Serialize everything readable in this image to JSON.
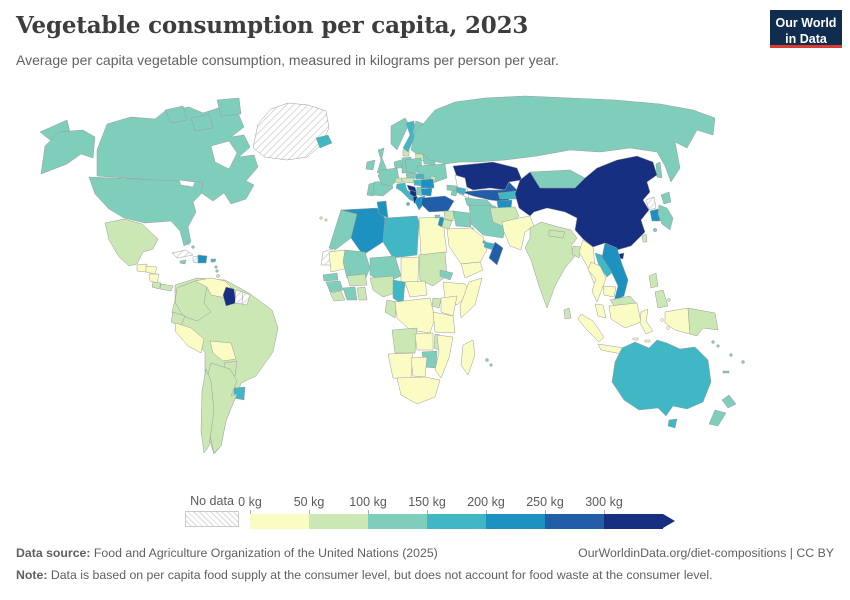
{
  "header": {
    "title": "Vegetable consumption per capita, 2023",
    "subtitle": "Average per capita vegetable consumption, measured in kilograms per person per year.",
    "logo_line1": "Our World",
    "logo_line2": "in Data",
    "logo_bg_color": "#102d50",
    "logo_accent_color": "#d93d32"
  },
  "footer": {
    "source_label": "Data source:",
    "source_text": " Food and Agriculture Organization of the United Nations (2025)",
    "link_text": "OurWorldinData.org/diet-compositions | CC BY",
    "note_label": "Note:",
    "note_text": " Data is based on per capita food supply at the consumer level, but does not account for food waste at the consumer level."
  },
  "chart_data": {
    "type": "choropleth_map",
    "title": "Vegetable consumption per capita, 2023",
    "unit": "kilograms per person per year",
    "year": 2023,
    "legend": {
      "no_data_label": "No data",
      "no_data_pattern": "diagonal-hatch",
      "tick_labels": [
        "0 kg",
        "50 kg",
        "100 kg",
        "150 kg",
        "200 kg",
        "250 kg",
        "300 kg"
      ],
      "colors": [
        "#fbfcc4",
        "#cbe7b4",
        "#7fcdbb",
        "#41b6c4",
        "#1d91c0",
        "#225ea8",
        "#172f80"
      ],
      "bin_ranges": [
        "0–50 kg",
        "50–100 kg",
        "100–150 kg",
        "150–200 kg",
        "200–250 kg",
        "250–300 kg",
        "300+ kg"
      ],
      "arrow_at_end": true
    },
    "countries": {
      "greenland": "no_data",
      "western-sahara": "no_data",
      "cuba": "no_data",
      "haiti": "no_data",
      "suriname": "no_data",
      "french-guiana": "no_data",
      "north-korea": "no_data",
      "guatemala": 0,
      "honduras": 0,
      "nicaragua": 0,
      "venezuela": 0,
      "peru": 0,
      "bolivia": 0,
      "egypt": 0,
      "mauritania": 0,
      "chad": 0,
      "ethiopia": 0,
      "somalia": 0,
      "kenya": 0,
      "tanzania": 0,
      "democratic-republic-of-congo": 0,
      "zambia": 0,
      "mozambique": 0,
      "madagascar": 0,
      "namibia": 0,
      "botswana": 0,
      "south-africa": 0,
      "saudi-arabia": 0,
      "yemen": 0,
      "pakistan": 0,
      "myanmar": 0,
      "thailand": 0,
      "cambodia": 0,
      "malaysia": 0,
      "indonesia": 0,
      "central-african-republic": 0,
      "mexico": 1,
      "costa-rica": 1,
      "panama": 1,
      "colombia": 1,
      "ecuador": 1,
      "brazil": 1,
      "paraguay": 1,
      "argentina": 1,
      "chile": 1,
      "trinidad-and-tobago": 1,
      "sudan": 1,
      "nigeria": 1,
      "ghana": 1,
      "burkina-faso": 1,
      "liberia": 1,
      "uganda": 1,
      "angola": 1,
      "malawi": 1,
      "congo": 1,
      "denmark": 1,
      "baltic-states": 1,
      "austria": 1,
      "switzerland": 1,
      "moldova": 1,
      "syria": 1,
      "jordan": 1,
      "afghanistan": 1,
      "india": 1,
      "nepal": 1,
      "bangladesh": 1,
      "sri-lanka": 1,
      "taiwan": 1,
      "philippines": 1,
      "papua-new-guinea": 1,
      "east-malaysia": 1,
      "canary-islands": 1,
      "canada": 2,
      "united-states": 2,
      "russia": 2,
      "mongolia": 2,
      "japan": 2,
      "morocco": 2,
      "mali": 2,
      "niger": 2,
      "senegal": 2,
      "guinea": 2,
      "ivory-coast": 2,
      "eritrea": 2,
      "zimbabwe": 2,
      "jamaica": 2,
      "bahamas": 2,
      "ireland": 2,
      "united-kingdom": 2,
      "portugal": 2,
      "spain": 2,
      "france": 2,
      "belgium-netherlands": 2,
      "germany": 2,
      "norway": 2,
      "finland": 2,
      "poland": 2,
      "czechia": 2,
      "serbia": 2,
      "ukraine": 2,
      "belarus": 2,
      "georgia": 2,
      "armenia": 2,
      "iraq": 2,
      "iran": 2,
      "kuwait": 2,
      "cyprus": 2,
      "new-zealand": 2,
      "fiji": 2,
      "vanuatu": 2,
      "new-caledonia": 2,
      "solomon-islands": 2,
      "turkmenistan": 2,
      "mauritius": 2,
      "lesser-antilles": 2,
      "iceland": 3,
      "sweden": 3,
      "slovakia": 3,
      "hungary": 3,
      "italy": 3,
      "uruguay": 3,
      "libya": 3,
      "cameroon": 3,
      "kyrgyzstan": 3,
      "azerbaijan": 3,
      "qatar": 3,
      "united-arab-emirates": 3,
      "laos": 3,
      "australia": 3,
      "puerto-rico": 3,
      "dominican-republic": 4,
      "algeria": 4,
      "tunisia": 4,
      "greece": 4,
      "bulgaria": 4,
      "romania": 4,
      "israel": 4,
      "tajikistan": 4,
      "south-korea": 4,
      "vietnam": 4,
      "turkey": 5,
      "uzbekistan": 5,
      "oman": 5,
      "guyana": 6,
      "croatia": 6,
      "bosnia-and-herzegovina": 6,
      "albania": 6,
      "kazakhstan": 6,
      "china": 6
    }
  }
}
